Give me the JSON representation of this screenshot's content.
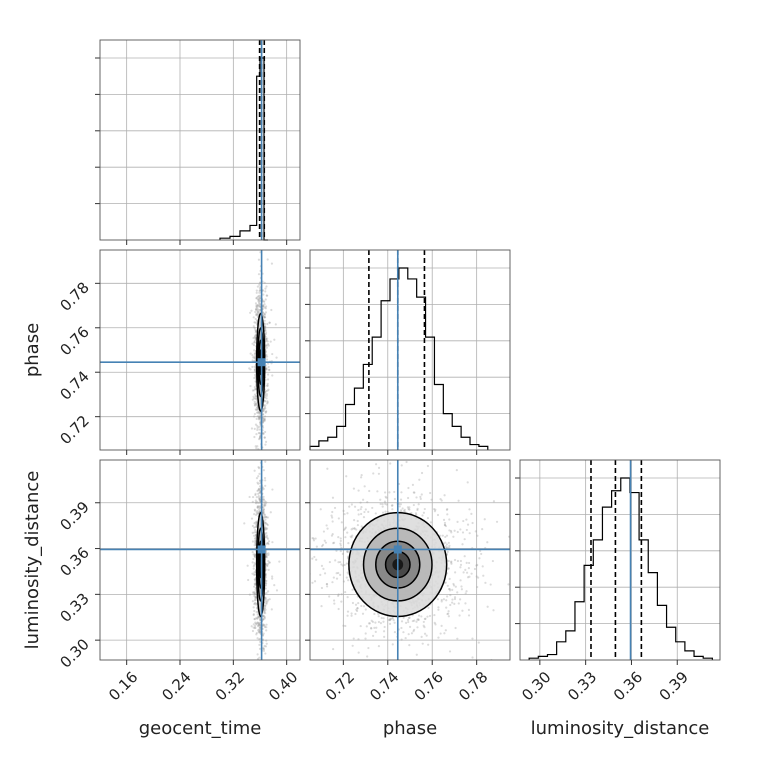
{
  "chart_data": {
    "type": "corner",
    "parameters": [
      "geocent_time",
      "phase",
      "luminosity_distance"
    ],
    "axis_labels": {
      "x": [
        "geocent_time",
        "phase",
        "luminosity_distance"
      ],
      "y": [
        "phase",
        "luminosity_distance"
      ]
    },
    "ranges": {
      "geocent_time": [
        0.12,
        0.42
      ],
      "phase": [
        0.705,
        0.795
      ],
      "luminosity_distance": [
        0.287,
        0.418
      ]
    },
    "ticks": {
      "geocent_time": [
        "0.16",
        "0.24",
        "0.32",
        "0.40"
      ],
      "phase": [
        "0.72",
        "0.74",
        "0.76",
        "0.78"
      ],
      "luminosity_distance": [
        "0.30",
        "0.33",
        "0.36",
        "0.39"
      ]
    },
    "truths": {
      "geocent_time": 0.3624,
      "phase": 0.7445,
      "luminosity_distance": 0.3594
    },
    "quantiles": {
      "geocent_time": [
        0.3594,
        0.3624,
        0.3664
      ],
      "phase": [
        0.7315,
        0.7445,
        0.7565
      ],
      "luminosity_distance": [
        0.3335,
        0.3495,
        0.3665
      ]
    },
    "histograms": {
      "geocent_time": {
        "edges": [
          0.3,
          0.315,
          0.33,
          0.345,
          0.355,
          0.36,
          0.366,
          0.372
        ],
        "counts": [
          0.01,
          0.02,
          0.05,
          0.08,
          0.9,
          1.0,
          0.0
        ]
      },
      "phase": {
        "edges": [
          0.705,
          0.709,
          0.713,
          0.717,
          0.721,
          0.725,
          0.729,
          0.733,
          0.737,
          0.741,
          0.745,
          0.749,
          0.753,
          0.757,
          0.761,
          0.765,
          0.769,
          0.773,
          0.777,
          0.781,
          0.785
        ],
        "counts": [
          0.02,
          0.05,
          0.07,
          0.13,
          0.25,
          0.34,
          0.47,
          0.62,
          0.82,
          0.94,
          1.0,
          0.94,
          0.84,
          0.62,
          0.36,
          0.2,
          0.13,
          0.07,
          0.03,
          0.02
        ]
      },
      "luminosity_distance": {
        "edges": [
          0.293,
          0.299,
          0.305,
          0.311,
          0.317,
          0.323,
          0.329,
          0.335,
          0.341,
          0.347,
          0.353,
          0.359,
          0.365,
          0.371,
          0.377,
          0.383,
          0.389,
          0.395,
          0.401,
          0.407,
          0.413
        ],
        "counts": [
          0.01,
          0.02,
          0.03,
          0.1,
          0.16,
          0.32,
          0.52,
          0.66,
          0.84,
          0.93,
          1.0,
          0.92,
          0.66,
          0.48,
          0.3,
          0.18,
          0.1,
          0.05,
          0.02,
          0.01
        ]
      }
    },
    "pair_blobs": {
      "geocent_time_vs_phase": {
        "x_center": 0.361,
        "y_center": 0.7445,
        "x_sd": 0.003,
        "y_sd": 0.011
      },
      "geocent_time_vs_luminosity_distance": {
        "x_center": 0.361,
        "y_center": 0.3495,
        "x_sd": 0.003,
        "y_sd": 0.017
      },
      "phase_vs_luminosity_distance": {
        "x_center": 0.7445,
        "y_center": 0.3495,
        "x_sd": 0.011,
        "y_sd": 0.017
      }
    },
    "colors": {
      "truth": "#4682b4",
      "hist": "#000000",
      "grid": "#b0b0b0",
      "points": "#9a9a9a"
    },
    "grid": true
  }
}
